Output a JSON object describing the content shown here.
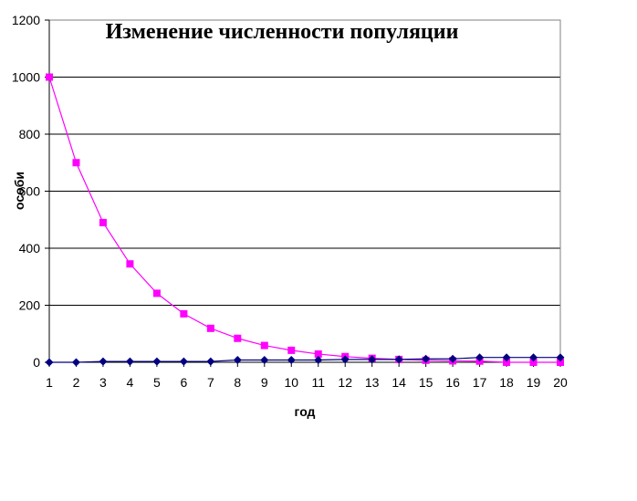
{
  "chart_data": {
    "type": "line",
    "title": "Изменение численности популяции",
    "xlabel": "год",
    "ylabel": "особи",
    "x": [
      1,
      2,
      3,
      4,
      5,
      6,
      7,
      8,
      9,
      10,
      11,
      12,
      13,
      14,
      15,
      16,
      17,
      18,
      19,
      20
    ],
    "ylim": [
      0,
      1200
    ],
    "yticks": [
      0,
      200,
      400,
      600,
      800,
      1000,
      1200
    ],
    "grid": true,
    "legend": "none",
    "series": [
      {
        "color": "#ff00ff",
        "marker": "square",
        "values": [
          1000,
          700,
          490,
          345,
          242,
          170,
          119,
          84,
          59,
          42,
          29,
          20,
          14,
          10,
          7,
          5,
          4,
          0,
          0,
          0
        ]
      },
      {
        "color": "#000080",
        "marker": "diamond",
        "values": [
          0,
          0,
          3,
          3,
          3,
          3,
          3,
          8,
          8,
          8,
          8,
          10,
          10,
          10,
          12,
          12,
          17,
          17,
          17,
          17
        ]
      }
    ]
  }
}
